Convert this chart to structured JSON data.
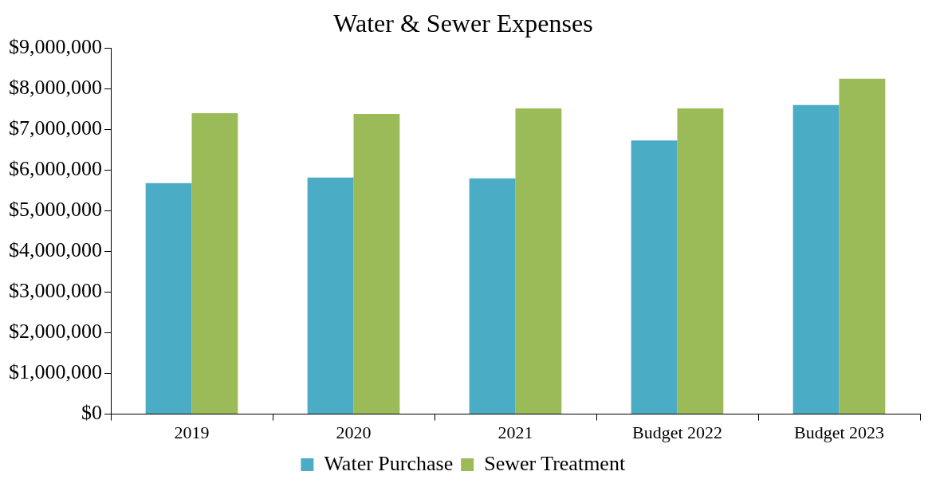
{
  "chart_data": {
    "type": "bar",
    "title": "Water & Sewer Expenses",
    "categories": [
      "2019",
      "2020",
      "2021",
      "Budget 2022",
      "Budget 2023"
    ],
    "series": [
      {
        "name": "Water Purchase",
        "color": "#4bacc6",
        "values": [
          5680000,
          5820000,
          5800000,
          6730000,
          7600000
        ]
      },
      {
        "name": "Sewer Treatment",
        "color": "#9bbb59",
        "values": [
          7400000,
          7380000,
          7520000,
          7520000,
          8250000
        ]
      }
    ],
    "ylim": [
      0,
      9000000
    ],
    "yticks": [
      {
        "value": 0,
        "label": "$0"
      },
      {
        "value": 1000000,
        "label": "$1,000,000"
      },
      {
        "value": 2000000,
        "label": "$2,000,000"
      },
      {
        "value": 3000000,
        "label": "$3,000,000"
      },
      {
        "value": 4000000,
        "label": "$4,000,000"
      },
      {
        "value": 5000000,
        "label": "$5,000,000"
      },
      {
        "value": 6000000,
        "label": "$6,000,000"
      },
      {
        "value": 7000000,
        "label": "$7,000,000"
      },
      {
        "value": 8000000,
        "label": "$8,000,000"
      },
      {
        "value": 9000000,
        "label": "$9,000,000"
      }
    ],
    "grid": false,
    "legend": "bottom"
  }
}
